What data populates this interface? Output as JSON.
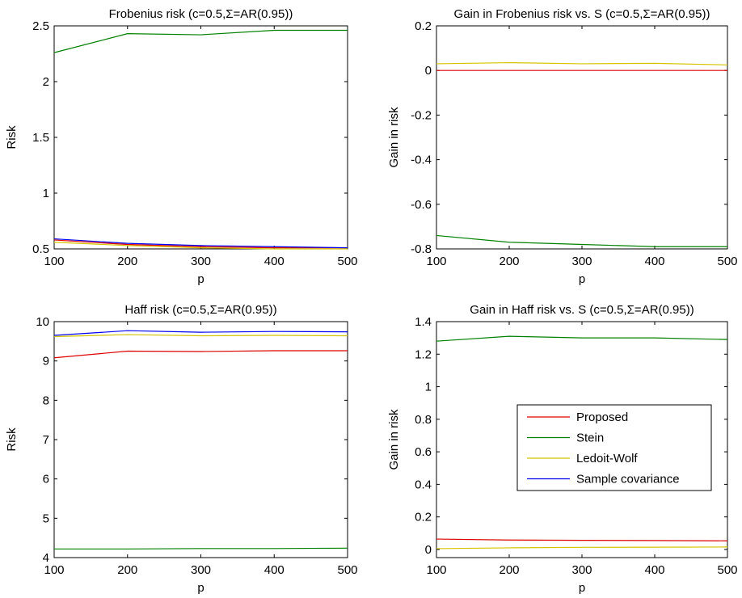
{
  "colors": {
    "proposed": "#dd0000",
    "stein": "#008000",
    "ledoit_wolf": "#d4c400",
    "sample_covariance": "#0000ee"
  },
  "chart_data": [
    {
      "type": "line",
      "title": "Frobenius risk (c=0.5,Σ=AR(0.95))",
      "xlabel": "p",
      "ylabel": "Risk",
      "xlim": [
        100,
        500
      ],
      "ylim": [
        0.5,
        2.5
      ],
      "xticks": [
        "100",
        "200",
        "300",
        "400",
        "500"
      ],
      "yticks": [
        "0.5",
        "1",
        "1.5",
        "2",
        "2.5"
      ],
      "x": [
        100,
        200,
        300,
        400,
        500
      ],
      "series": [
        {
          "key": "proposed",
          "values": [
            0.58,
            0.54,
            0.52,
            0.51,
            0.51
          ]
        },
        {
          "key": "stein",
          "values": [
            2.26,
            2.43,
            2.42,
            2.46,
            2.46
          ]
        },
        {
          "key": "ledoit_wolf",
          "values": [
            0.56,
            0.53,
            0.51,
            0.5,
            0.5
          ]
        },
        {
          "key": "sample_covariance",
          "values": [
            0.59,
            0.55,
            0.53,
            0.52,
            0.51
          ]
        }
      ]
    },
    {
      "type": "line",
      "title": "Gain in Frobenius risk vs. S (c=0.5,Σ=AR(0.95))",
      "xlabel": "p",
      "ylabel": "Gain in risk",
      "xlim": [
        100,
        500
      ],
      "ylim": [
        -0.8,
        0.2
      ],
      "xticks": [
        "100",
        "200",
        "300",
        "400",
        "500"
      ],
      "yticks": [
        "-0.8",
        "-0.6",
        "-0.4",
        "-0.2",
        "0",
        "0.2"
      ],
      "x": [
        100,
        200,
        300,
        400,
        500
      ],
      "series": [
        {
          "key": "proposed",
          "values": [
            0.0,
            0.0,
            0.0,
            0.0,
            0.0
          ]
        },
        {
          "key": "stein",
          "values": [
            -0.74,
            -0.77,
            -0.78,
            -0.79,
            -0.79
          ]
        },
        {
          "key": "ledoit_wolf",
          "values": [
            0.03,
            0.035,
            0.03,
            0.032,
            0.025
          ]
        }
      ]
    },
    {
      "type": "line",
      "title": "Haff risk (c=0.5,Σ=AR(0.95))",
      "xlabel": "p",
      "ylabel": "Risk",
      "xlim": [
        100,
        500
      ],
      "ylim": [
        4,
        10
      ],
      "xticks": [
        "100",
        "200",
        "300",
        "400",
        "500"
      ],
      "yticks": [
        "4",
        "5",
        "6",
        "7",
        "8",
        "9",
        "10"
      ],
      "x": [
        100,
        200,
        300,
        400,
        500
      ],
      "series": [
        {
          "key": "proposed",
          "values": [
            9.08,
            9.25,
            9.24,
            9.26,
            9.26
          ]
        },
        {
          "key": "stein",
          "values": [
            4.22,
            4.22,
            4.23,
            4.23,
            4.24
          ]
        },
        {
          "key": "ledoit_wolf",
          "values": [
            9.62,
            9.67,
            9.64,
            9.65,
            9.64
          ]
        },
        {
          "key": "sample_covariance",
          "values": [
            9.65,
            9.77,
            9.73,
            9.75,
            9.74
          ]
        }
      ]
    },
    {
      "type": "line",
      "title": "Gain in Haff risk vs. S (c=0.5,Σ=AR(0.95))",
      "xlabel": "p",
      "ylabel": "Gain in risk",
      "xlim": [
        100,
        500
      ],
      "ylim": [
        -0.05,
        1.4
      ],
      "xticks": [
        "100",
        "200",
        "300",
        "400",
        "500"
      ],
      "yticks": [
        "0",
        "0.2",
        "0.4",
        "0.6",
        "0.8",
        "1",
        "1.2",
        "1.4"
      ],
      "x": [
        100,
        200,
        300,
        400,
        500
      ],
      "legend": {
        "placement": "center-right",
        "entries": [
          {
            "key": "proposed",
            "label": "Proposed"
          },
          {
            "key": "stein",
            "label": "Stein"
          },
          {
            "key": "ledoit_wolf",
            "label": "Ledoit-Wolf"
          },
          {
            "key": "sample_covariance",
            "label": "Sample covariance"
          }
        ]
      },
      "series": [
        {
          "key": "proposed",
          "values": [
            0.064,
            0.058,
            0.056,
            0.055,
            0.053
          ]
        },
        {
          "key": "stein",
          "values": [
            1.28,
            1.31,
            1.3,
            1.3,
            1.29
          ]
        },
        {
          "key": "ledoit_wolf",
          "values": [
            0.005,
            0.01,
            0.013,
            0.014,
            0.015
          ]
        }
      ]
    }
  ]
}
